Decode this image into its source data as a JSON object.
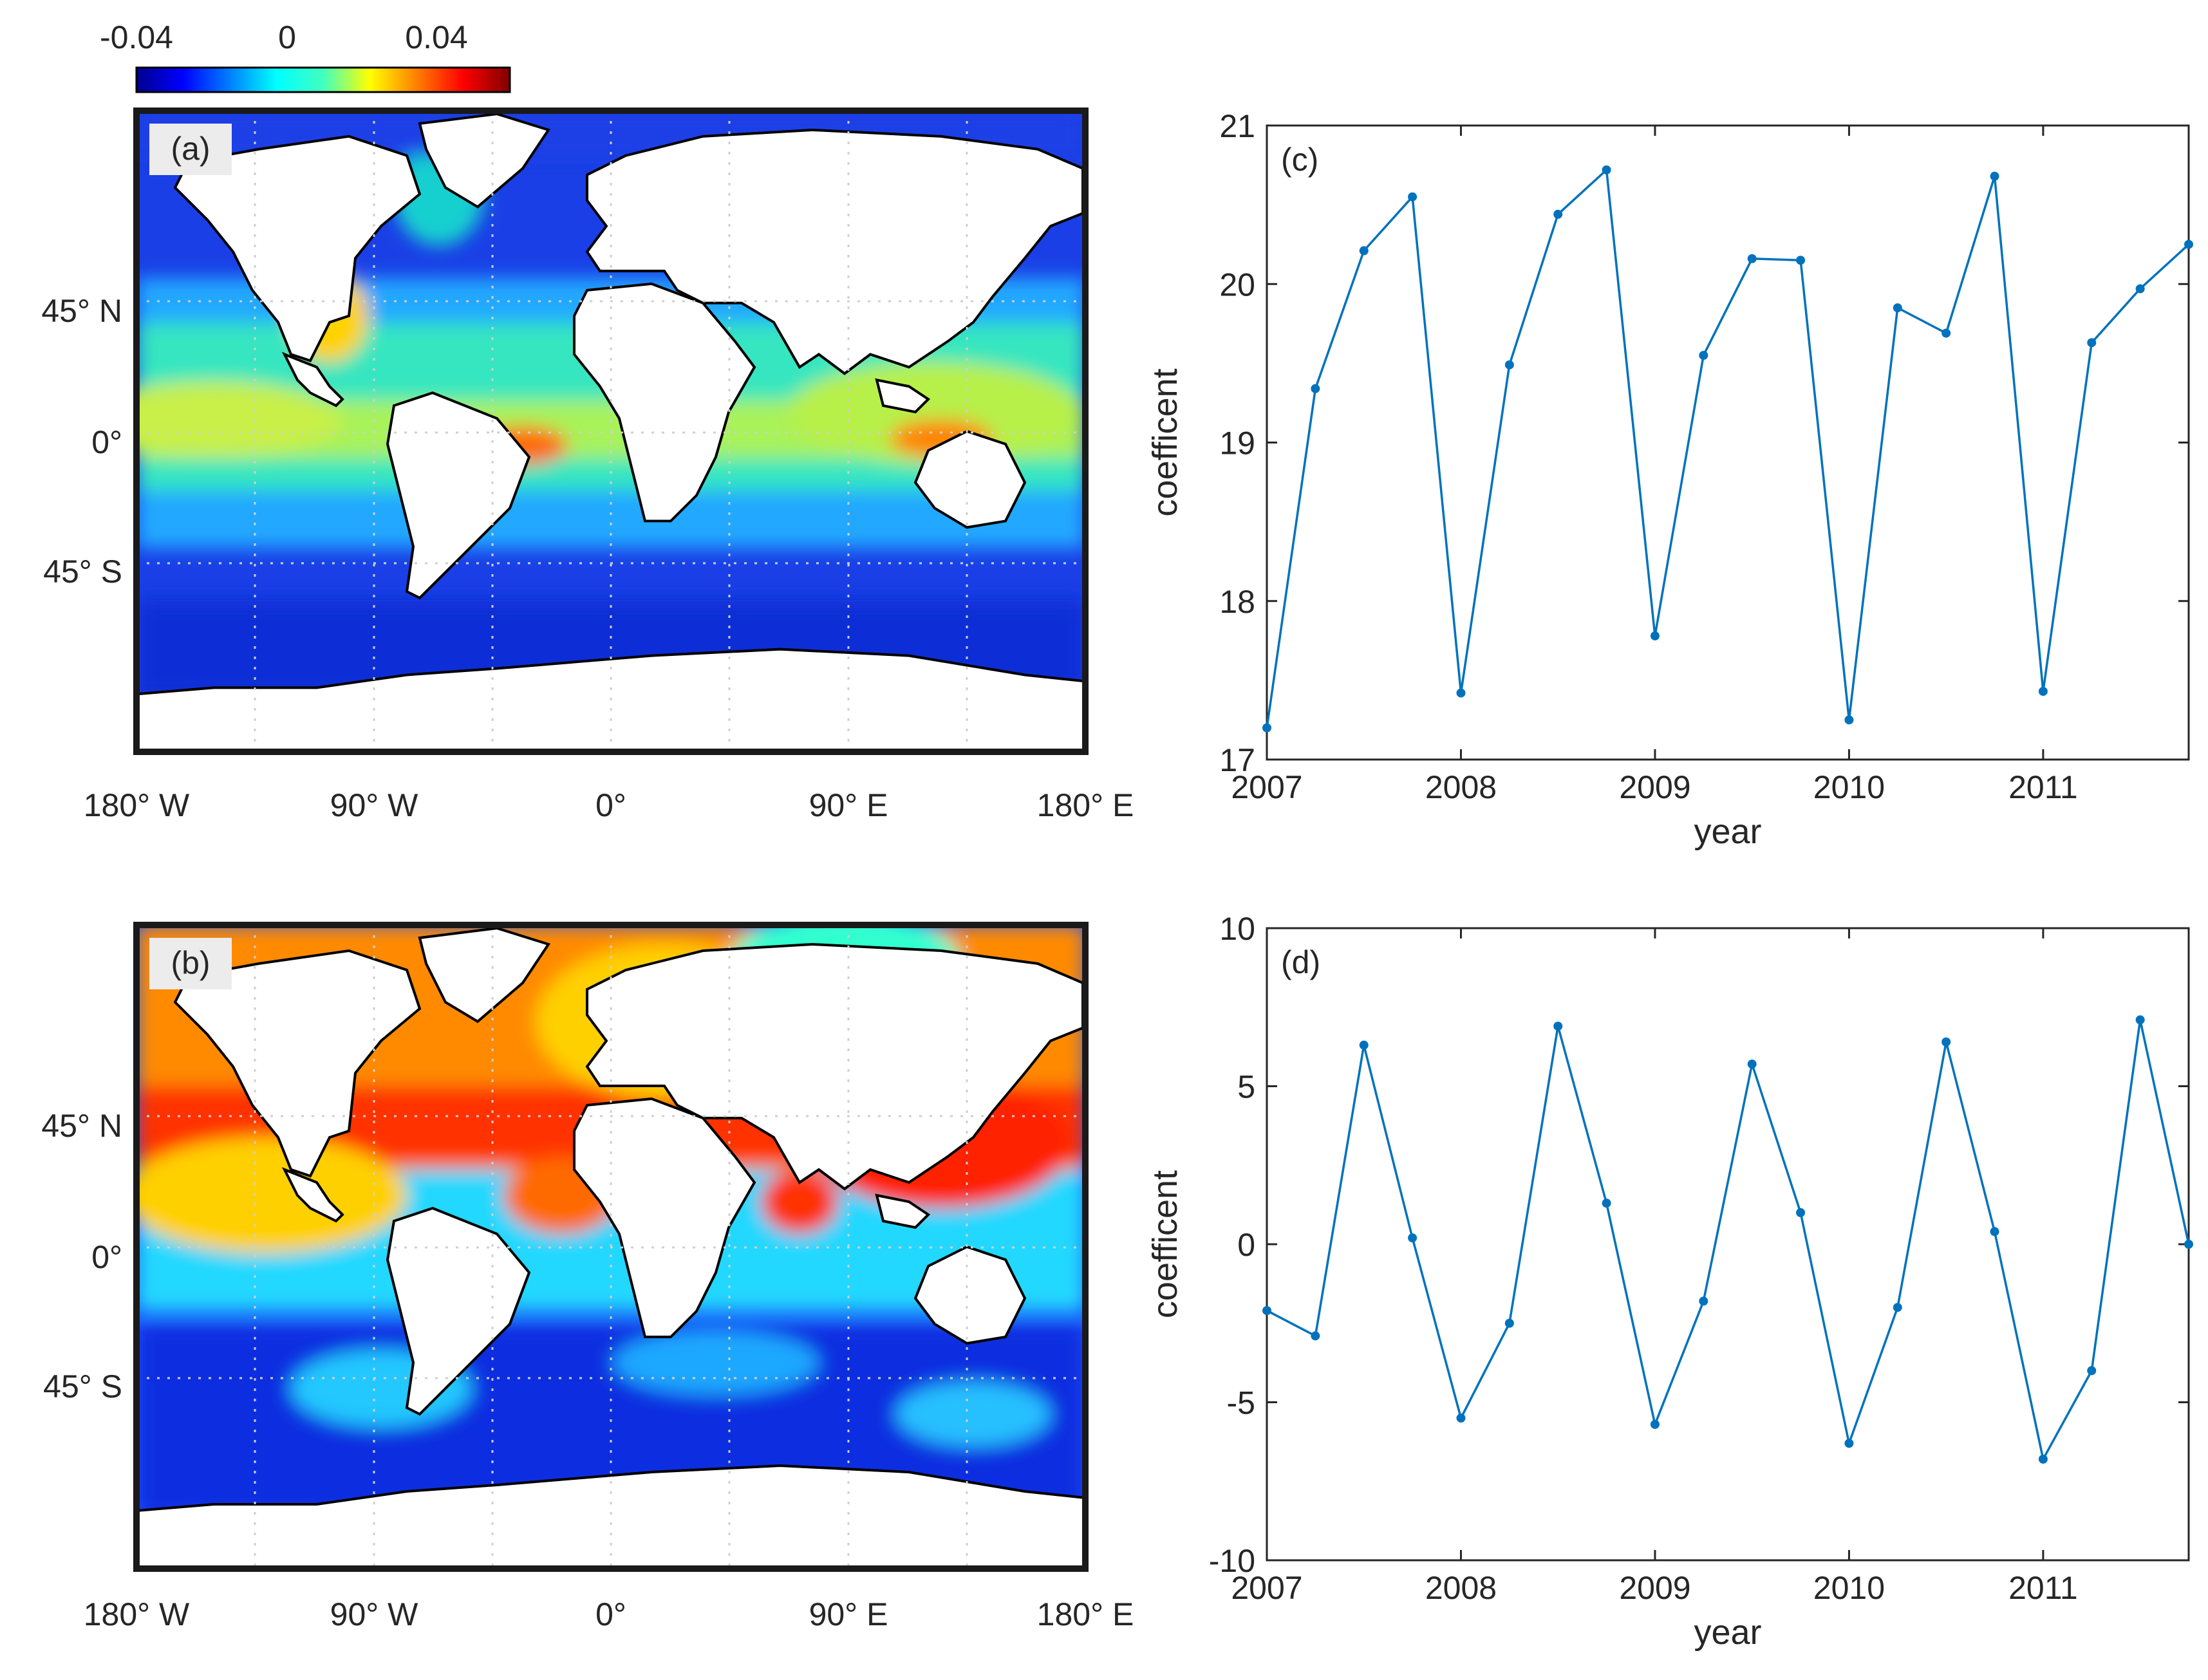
{
  "colorbar": {
    "ticks": [
      "-0.04",
      "0",
      "0.04"
    ],
    "range": [
      -0.055,
      0.055
    ]
  },
  "maps": [
    {
      "label": "(a)",
      "lat_labels": [
        "45° N",
        "0°",
        "45° S"
      ],
      "lon_labels": [
        "180° W",
        "90° W",
        "0°",
        "90° E",
        "180° E"
      ]
    },
    {
      "label": "(b)",
      "lat_labels": [
        "45° N",
        "0°",
        "45° S"
      ],
      "lon_labels": [
        "180° W",
        "90° W",
        "0°",
        "90° E",
        "180° E"
      ]
    }
  ],
  "colors": {
    "line": "#0072BD",
    "axis": "#262626",
    "map_frame": "#1a1a1a"
  },
  "chart_data": [
    {
      "type": "line",
      "panel_label": "(c)",
      "xlabel": "year",
      "ylabel": "coefficent",
      "xlim": [
        2007,
        2011.75
      ],
      "ylim": [
        17,
        21
      ],
      "xticks": [
        "2007",
        "2008",
        "2009",
        "2010",
        "2011"
      ],
      "yticks": [
        "17",
        "18",
        "19",
        "20",
        "21"
      ],
      "x": [
        2007,
        2007.25,
        2007.5,
        2007.75,
        2008,
        2008.25,
        2008.5,
        2008.75,
        2009,
        2009.25,
        2009.5,
        2009.75,
        2010,
        2010.25,
        2010.5,
        2010.75,
        2011,
        2011.25,
        2011.5,
        2011.75
      ],
      "y": [
        17.2,
        19.34,
        20.21,
        20.55,
        17.42,
        19.49,
        20.44,
        20.72,
        17.78,
        19.55,
        20.16,
        20.15,
        17.25,
        19.85,
        19.69,
        20.68,
        17.43,
        19.63,
        19.97,
        20.25
      ]
    },
    {
      "type": "line",
      "panel_label": "(d)",
      "xlabel": "year",
      "ylabel": "coefficent",
      "xlim": [
        2007,
        2011.75
      ],
      "ylim": [
        -10,
        10
      ],
      "xticks": [
        "2007",
        "2008",
        "2009",
        "2010",
        "2011"
      ],
      "yticks": [
        "-10",
        "-5",
        "0",
        "5",
        "10"
      ],
      "x": [
        2007,
        2007.25,
        2007.5,
        2007.75,
        2008,
        2008.25,
        2008.5,
        2008.75,
        2009,
        2009.25,
        2009.5,
        2009.75,
        2010,
        2010.25,
        2010.5,
        2010.75,
        2011,
        2011.25,
        2011.5,
        2011.75
      ],
      "y": [
        -2.1,
        -2.9,
        6.3,
        0.2,
        -5.5,
        -2.5,
        6.9,
        1.3,
        -5.7,
        -1.8,
        5.7,
        1.0,
        -6.3,
        -2.0,
        6.4,
        0.4,
        -6.8,
        -4.0,
        7.1,
        0.0
      ]
    }
  ]
}
